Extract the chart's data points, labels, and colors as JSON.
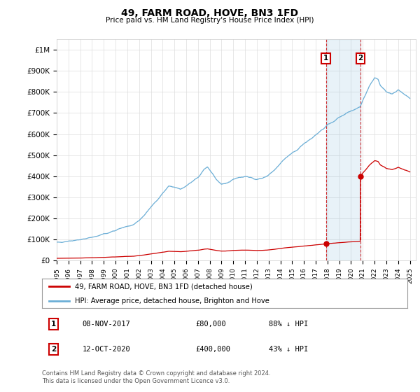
{
  "title": "49, FARM ROAD, HOVE, BN3 1FD",
  "subtitle": "Price paid vs. HM Land Registry's House Price Index (HPI)",
  "ylabel_ticks": [
    "£0",
    "£100K",
    "£200K",
    "£300K",
    "£400K",
    "£500K",
    "£600K",
    "£700K",
    "£800K",
    "£900K",
    "£1M"
  ],
  "ytick_values": [
    0,
    100000,
    200000,
    300000,
    400000,
    500000,
    600000,
    700000,
    800000,
    900000,
    1000000
  ],
  "xlim": [
    1995.0,
    2025.5
  ],
  "ylim": [
    0,
    1050000
  ],
  "hpi_color": "#6baed6",
  "price_color": "#cc0000",
  "transaction1_year": 2017.87,
  "transaction1_price": 80000,
  "transaction2_year": 2020.79,
  "transaction2_price": 400000,
  "legend_line1": "49, FARM ROAD, HOVE, BN3 1FD (detached house)",
  "legend_line2": "HPI: Average price, detached house, Brighton and Hove",
  "footer": "Contains HM Land Registry data © Crown copyright and database right 2024.\nThis data is licensed under the Open Government Licence v3.0.",
  "background_color": "#ffffff",
  "grid_color": "#dddddd"
}
